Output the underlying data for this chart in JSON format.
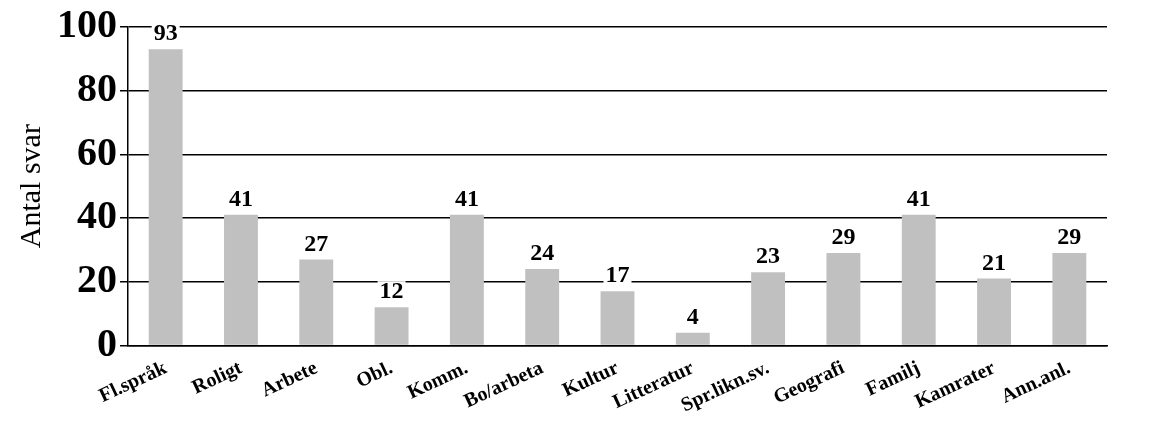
{
  "chart_data": {
    "type": "bar",
    "ylabel": "Antal svar",
    "categories": [
      "Fl.språk",
      "Roligt",
      "Arbete",
      "Obl.",
      "Komm.",
      "Bo/arbeta",
      "Kultur",
      "Litteratur",
      "Spr.likn.sv.",
      "Geografi",
      "Familj",
      "Kamrater",
      "Ann.anl."
    ],
    "values": [
      93,
      41,
      27,
      12,
      41,
      24,
      17,
      4,
      23,
      29,
      41,
      21,
      29
    ],
    "color": "#c0c0c0",
    "ylim": [
      0,
      100
    ],
    "yticks": [
      0,
      20,
      40,
      60,
      80,
      100
    ],
    "grid": "y",
    "data_labels": true,
    "legend": false
  }
}
